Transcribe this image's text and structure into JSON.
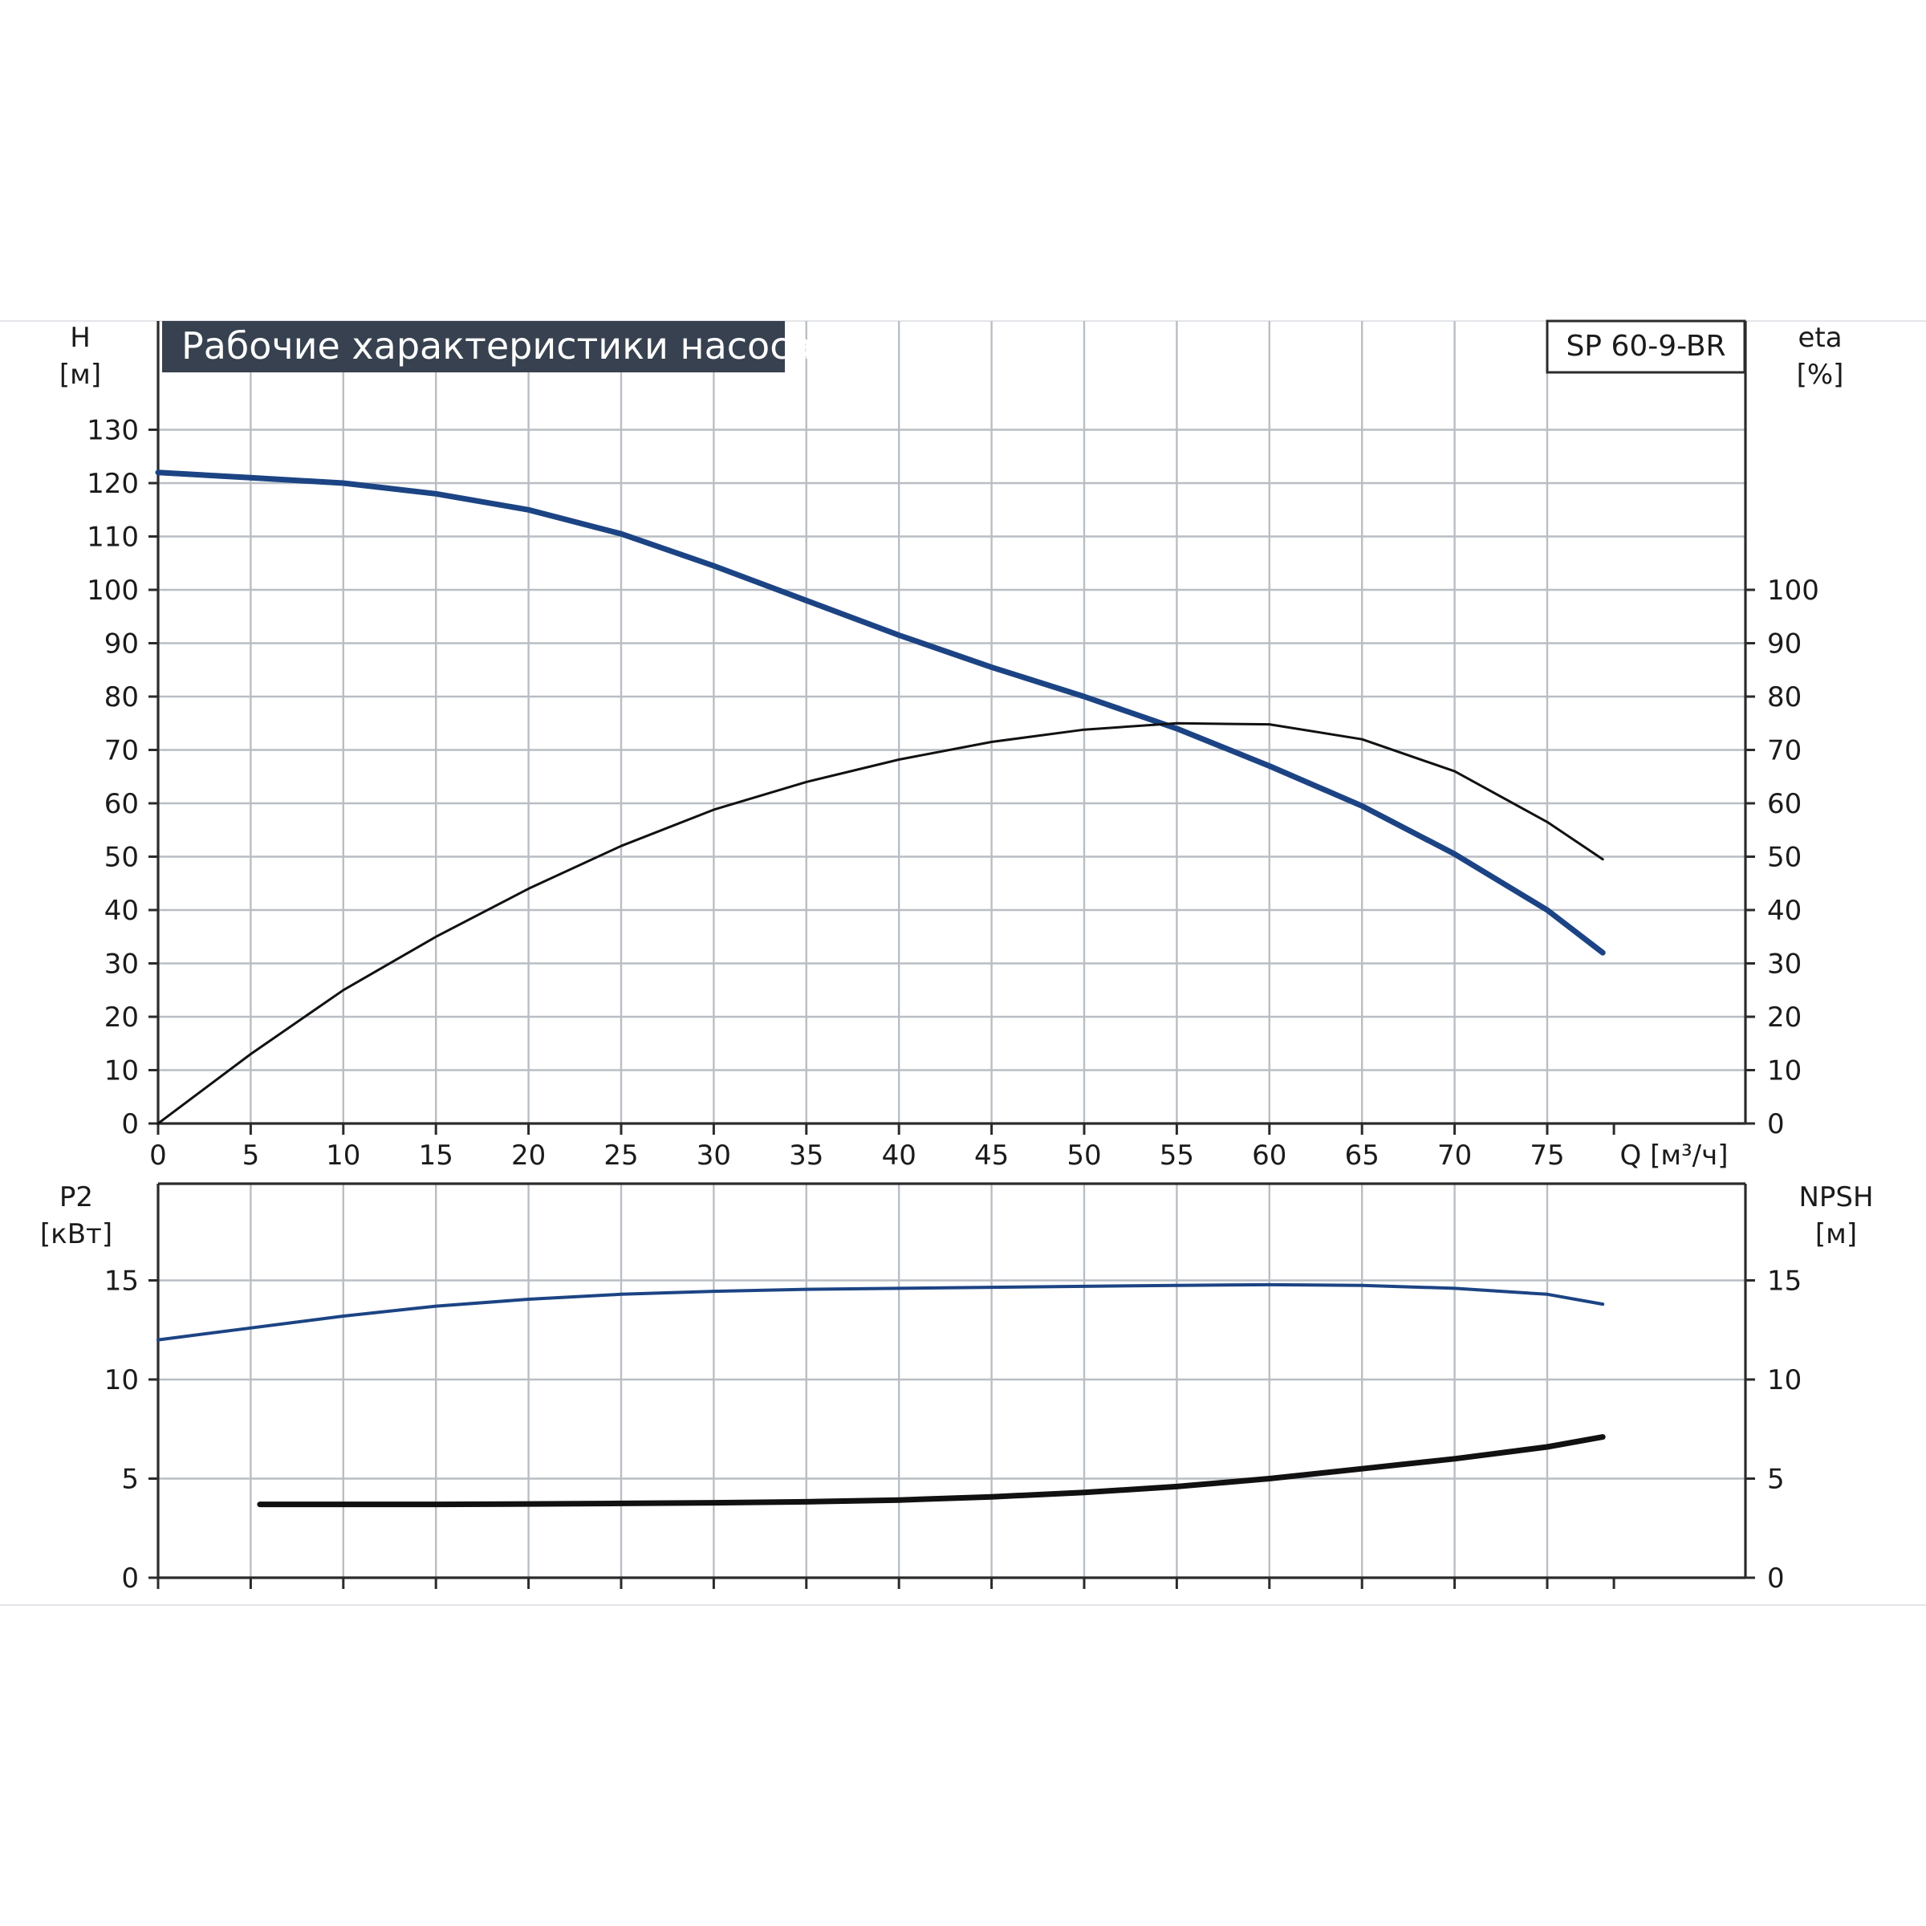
{
  "title": "Рабочие характеристики насоса",
  "model": "SP 60-9-BR",
  "colors": {
    "title_bg": "#37414f",
    "blue_curve": "#1c4484",
    "black_curve": "#111111",
    "grid": "#b9bec4"
  },
  "chart_data": [
    {
      "type": "line",
      "name": "upper-chart",
      "x_label": "Q [м³/ч]",
      "xlim": [
        0,
        80
      ],
      "x_ticks": [
        0,
        5,
        10,
        15,
        20,
        25,
        30,
        35,
        40,
        45,
        50,
        55,
        60,
        65,
        70,
        75
      ],
      "left_axis": {
        "label_line1": "H",
        "label_line2": "[м]",
        "ylim": [
          0,
          140
        ],
        "ticks": [
          0,
          10,
          20,
          30,
          40,
          50,
          60,
          70,
          80,
          90,
          100,
          110,
          120,
          130
        ]
      },
      "right_axis": {
        "label_line1": "eta",
        "label_line2": "[%]",
        "ylim": [
          0,
          140
        ],
        "ticks": [
          0,
          10,
          20,
          30,
          40,
          50,
          60,
          70,
          80,
          90,
          100
        ]
      },
      "grid": true,
      "series": [
        {
          "axis": "left",
          "color": "blue",
          "width": "thick",
          "points": [
            [
              0,
              122
            ],
            [
              5,
              121
            ],
            [
              10,
              120
            ],
            [
              15,
              118
            ],
            [
              20,
              115
            ],
            [
              25,
              110.5
            ],
            [
              30,
              104.5
            ],
            [
              35,
              98
            ],
            [
              40,
              91.5
            ],
            [
              45,
              85.5
            ],
            [
              50,
              80
            ],
            [
              55,
              74
            ],
            [
              60,
              67
            ],
            [
              65,
              59.5
            ],
            [
              70,
              50.5
            ],
            [
              75,
              40
            ],
            [
              78,
              32
            ]
          ]
        },
        {
          "axis": "right",
          "color": "black",
          "width": "thin",
          "points": [
            [
              0,
              0
            ],
            [
              5,
              13
            ],
            [
              10,
              25
            ],
            [
              15,
              35
            ],
            [
              20,
              44
            ],
            [
              25,
              52
            ],
            [
              30,
              58.8
            ],
            [
              35,
              64
            ],
            [
              40,
              68.2
            ],
            [
              45,
              71.5
            ],
            [
              50,
              73.8
            ],
            [
              55,
              75
            ],
            [
              60,
              74.8
            ],
            [
              65,
              72
            ],
            [
              70,
              66
            ],
            [
              75,
              56.5
            ],
            [
              78,
              49.5
            ]
          ]
        }
      ]
    },
    {
      "type": "line",
      "name": "lower-chart",
      "xlim": [
        0,
        80
      ],
      "left_axis": {
        "label_line1": "P2",
        "label_line2": "[кВт]",
        "ylim": [
          0,
          20
        ],
        "ticks": [
          0,
          5,
          10,
          15
        ]
      },
      "right_axis": {
        "label_line1": "NPSH",
        "label_line2": "[м]",
        "ylim": [
          0,
          20
        ],
        "ticks": [
          0,
          5,
          10,
          15
        ]
      },
      "grid": true,
      "series": [
        {
          "axis": "left",
          "color": "blue",
          "width": "medium",
          "points": [
            [
              0,
              12
            ],
            [
              5,
              12.6
            ],
            [
              10,
              13.2
            ],
            [
              15,
              13.7
            ],
            [
              20,
              14.05
            ],
            [
              25,
              14.3
            ],
            [
              30,
              14.45
            ],
            [
              35,
              14.55
            ],
            [
              40,
              14.6
            ],
            [
              45,
              14.65
            ],
            [
              50,
              14.7
            ],
            [
              55,
              14.75
            ],
            [
              60,
              14.78
            ],
            [
              65,
              14.75
            ],
            [
              70,
              14.6
            ],
            [
              75,
              14.3
            ],
            [
              78,
              13.8
            ]
          ]
        },
        {
          "axis": "right",
          "color": "black",
          "width": "thick",
          "points": [
            [
              5.5,
              3.7
            ],
            [
              10,
              3.7
            ],
            [
              15,
              3.7
            ],
            [
              20,
              3.72
            ],
            [
              25,
              3.75
            ],
            [
              30,
              3.78
            ],
            [
              35,
              3.83
            ],
            [
              40,
              3.92
            ],
            [
              45,
              4.08
            ],
            [
              50,
              4.3
            ],
            [
              55,
              4.6
            ],
            [
              60,
              5.0
            ],
            [
              65,
              5.5
            ],
            [
              70,
              6.0
            ],
            [
              75,
              6.6
            ],
            [
              78,
              7.1
            ]
          ]
        }
      ]
    }
  ]
}
